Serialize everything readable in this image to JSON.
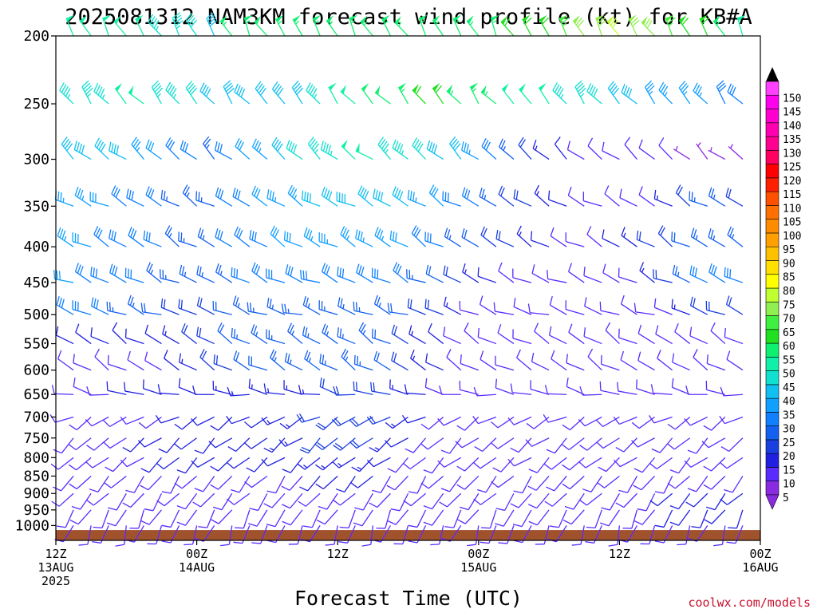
{
  "chart_data": {
    "type": "wind-barb-profile",
    "title": "2025081312 NAM3KM forecast wind profile (kt) for KB#A",
    "xlabel": "Forecast Time (UTC)",
    "ylabel": "",
    "credit": "coolwx.com/models",
    "y_axis": {
      "scale": "log-pressure",
      "reversed": true,
      "ylim": [
        1050,
        200
      ],
      "ticks": [
        200,
        250,
        300,
        350,
        400,
        450,
        500,
        550,
        600,
        650,
        700,
        750,
        800,
        850,
        900,
        950,
        1000
      ]
    },
    "x_axis": {
      "xlim_hours": [
        0,
        60
      ],
      "ticks": [
        {
          "hour": 0,
          "lines": [
            "12Z",
            "13AUG",
            "2025"
          ]
        },
        {
          "hour": 12,
          "lines": [
            "00Z",
            "14AUG"
          ]
        },
        {
          "hour": 24,
          "lines": [
            "12Z"
          ]
        },
        {
          "hour": 36,
          "lines": [
            "00Z",
            "15AUG"
          ]
        },
        {
          "hour": 48,
          "lines": [
            "12Z"
          ]
        },
        {
          "hour": 60,
          "lines": [
            "00Z",
            "16AUG"
          ]
        }
      ]
    },
    "ground": {
      "color": "#a0522d",
      "pressure_top": 1015
    },
    "barb_levels": [
      200,
      250,
      300,
      350,
      400,
      450,
      500,
      550,
      600,
      650,
      700,
      750,
      800,
      850,
      900,
      950,
      1000
    ],
    "barb_hours_step": 1.5,
    "colorbar": {
      "levels": [
        5,
        10,
        15,
        20,
        25,
        30,
        35,
        40,
        45,
        50,
        55,
        60,
        65,
        70,
        75,
        80,
        85,
        90,
        95,
        100,
        105,
        110,
        115,
        120,
        125,
        130,
        135,
        140,
        145,
        150
      ],
      "colors": [
        "#8a2be2",
        "#5a2bff",
        "#2020e0",
        "#1a3fe0",
        "#1460f0",
        "#1080ff",
        "#10a0ff",
        "#10c0f0",
        "#10e0d0",
        "#10f0a8",
        "#10f070",
        "#20e020",
        "#40f040",
        "#90f050",
        "#c0ff30",
        "#ffff00",
        "#ffe000",
        "#ffc000",
        "#ffa000",
        "#ff8c00",
        "#ff7000",
        "#ff5000",
        "#ff2000",
        "#ff0000",
        "#ff0060",
        "#ff0090",
        "#ff00b0",
        "#ff00d0",
        "#ff00ee",
        "#ff40ff"
      ]
    },
    "wind_knots_by_level": {
      "200": [
        45,
        48,
        50,
        50,
        50,
        48,
        45,
        45,
        42,
        40,
        55,
        55,
        52,
        55,
        55,
        55,
        55,
        55,
        55,
        55,
        55,
        55,
        55,
        55,
        55,
        55,
        60,
        60,
        60,
        65,
        70,
        70,
        72,
        70,
        70,
        65,
        60,
        60,
        55,
        50,
        50,
        45,
        45
      ],
      "250": [
        42,
        45,
        45,
        45,
        48,
        50,
        45,
        45,
        42,
        40,
        40,
        40,
        40,
        40,
        40,
        45,
        48,
        50,
        52,
        52,
        55,
        58,
        58,
        55,
        55,
        55,
        50,
        50,
        48,
        45,
        45,
        42,
        40,
        38,
        35,
        35,
        35,
        35,
        30,
        30,
        30,
        30,
        30
      ],
      "300": [
        40,
        40,
        40,
        40,
        38,
        35,
        32,
        30,
        28,
        25,
        30,
        32,
        35,
        40,
        42,
        45,
        45,
        48,
        48,
        45,
        45,
        42,
        40,
        38,
        35,
        30,
        25,
        20,
        15,
        12,
        10,
        8,
        8,
        8,
        8,
        8,
        5,
        5,
        5,
        5,
        5,
        5,
        5
      ],
      "350": [
        35,
        35,
        35,
        32,
        30,
        30,
        28,
        25,
        25,
        25,
        28,
        30,
        32,
        35,
        35,
        38,
        38,
        40,
        40,
        40,
        38,
        35,
        32,
        30,
        28,
        25,
        20,
        18,
        15,
        12,
        10,
        10,
        10,
        10,
        10,
        15,
        20,
        25,
        25,
        20,
        15,
        10,
        10
      ],
      "400": [
        35,
        35,
        32,
        30,
        30,
        28,
        28,
        25,
        25,
        25,
        28,
        30,
        30,
        32,
        32,
        35,
        35,
        35,
        35,
        35,
        32,
        30,
        28,
        25,
        22,
        20,
        18,
        15,
        12,
        10,
        10,
        10,
        12,
        15,
        18,
        20,
        22,
        25,
        25,
        25,
        20,
        15,
        12
      ],
      "450": [
        32,
        32,
        30,
        30,
        28,
        28,
        25,
        25,
        25,
        25,
        25,
        28,
        28,
        30,
        30,
        30,
        30,
        30,
        30,
        30,
        28,
        25,
        22,
        20,
        15,
        12,
        10,
        8,
        8,
        8,
        8,
        8,
        8,
        10,
        15,
        20,
        25,
        30,
        30,
        28,
        25,
        20,
        15
      ],
      "500": [
        30,
        30,
        28,
        28,
        25,
        25,
        22,
        20,
        20,
        20,
        22,
        25,
        25,
        25,
        25,
        25,
        25,
        25,
        25,
        25,
        22,
        20,
        18,
        15,
        10,
        8,
        8,
        8,
        8,
        8,
        8,
        8,
        8,
        8,
        8,
        10,
        15,
        20,
        20,
        18,
        15,
        12,
        10
      ],
      "550": [
        12,
        12,
        12,
        12,
        12,
        12,
        12,
        15,
        18,
        20,
        22,
        25,
        25,
        25,
        25,
        25,
        25,
        25,
        25,
        22,
        20,
        15,
        12,
        10,
        8,
        8,
        8,
        8,
        8,
        8,
        8,
        8,
        8,
        8,
        8,
        8,
        8,
        8,
        8,
        8,
        8,
        8,
        8
      ],
      "600": [
        10,
        10,
        10,
        10,
        10,
        10,
        10,
        12,
        15,
        18,
        20,
        22,
        22,
        25,
        25,
        25,
        25,
        25,
        25,
        22,
        20,
        15,
        12,
        10,
        8,
        8,
        8,
        8,
        8,
        8,
        8,
        8,
        8,
        8,
        8,
        8,
        8,
        8,
        8,
        8,
        8,
        8,
        8
      ],
      "650": [
        10,
        10,
        10,
        10,
        12,
        12,
        12,
        12,
        12,
        12,
        15,
        15,
        15,
        15,
        15,
        15,
        18,
        20,
        20,
        18,
        15,
        12,
        10,
        8,
        8,
        8,
        8,
        8,
        8,
        8,
        8,
        8,
        8,
        8,
        8,
        8,
        8,
        8,
        8,
        8,
        8,
        8,
        8
      ],
      "700": [
        10,
        10,
        10,
        10,
        10,
        10,
        10,
        12,
        12,
        12,
        12,
        12,
        12,
        15,
        15,
        18,
        20,
        20,
        20,
        18,
        15,
        12,
        10,
        8,
        8,
        8,
        8,
        8,
        8,
        8,
        8,
        8,
        8,
        8,
        8,
        8,
        8,
        8,
        8,
        8,
        8,
        8,
        8
      ],
      "750": [
        10,
        10,
        10,
        10,
        10,
        12,
        12,
        12,
        12,
        12,
        12,
        12,
        12,
        15,
        15,
        18,
        18,
        20,
        18,
        15,
        12,
        10,
        10,
        8,
        8,
        8,
        8,
        8,
        8,
        8,
        8,
        8,
        8,
        8,
        8,
        8,
        8,
        8,
        8,
        8,
        8,
        8,
        8
      ],
      "800": [
        8,
        8,
        8,
        10,
        10,
        10,
        12,
        12,
        12,
        12,
        12,
        12,
        12,
        12,
        12,
        15,
        15,
        15,
        15,
        12,
        10,
        10,
        8,
        8,
        8,
        8,
        8,
        8,
        8,
        8,
        8,
        8,
        8,
        8,
        8,
        8,
        8,
        8,
        8,
        8,
        8,
        10,
        10
      ],
      "850": [
        8,
        8,
        8,
        8,
        10,
        10,
        10,
        10,
        10,
        10,
        10,
        10,
        10,
        10,
        10,
        12,
        12,
        12,
        12,
        10,
        10,
        8,
        8,
        8,
        8,
        8,
        8,
        8,
        8,
        8,
        8,
        8,
        8,
        8,
        8,
        10,
        10,
        10,
        10,
        10,
        10,
        10,
        10
      ],
      "900": [
        8,
        8,
        8,
        8,
        8,
        8,
        8,
        8,
        8,
        8,
        8,
        8,
        8,
        8,
        8,
        10,
        10,
        10,
        10,
        8,
        8,
        8,
        8,
        8,
        8,
        8,
        8,
        8,
        8,
        8,
        8,
        8,
        8,
        8,
        10,
        12,
        12,
        12,
        12,
        12,
        12,
        12,
        12
      ],
      "950": [
        8,
        8,
        8,
        8,
        8,
        8,
        8,
        8,
        8,
        8,
        8,
        8,
        8,
        8,
        8,
        8,
        8,
        8,
        8,
        8,
        8,
        8,
        8,
        8,
        8,
        8,
        8,
        8,
        8,
        8,
        8,
        8,
        8,
        8,
        10,
        12,
        12,
        12,
        12,
        12,
        12,
        12,
        12
      ],
      "1000": [
        8,
        8,
        8,
        8,
        8,
        8,
        8,
        8,
        8,
        8,
        8,
        8,
        8,
        8,
        8,
        8,
        8,
        8,
        8,
        8,
        8,
        8,
        8,
        8,
        8,
        8,
        8,
        8,
        8,
        8,
        8,
        8,
        8,
        8,
        8,
        8,
        8,
        8,
        8,
        8,
        8,
        8,
        8
      ]
    },
    "wind_dir_deg_by_level": {
      "200": 330,
      "250": 320,
      "300": 310,
      "350": 300,
      "400": 300,
      "450": 295,
      "500": 290,
      "550": 300,
      "600": 300,
      "650": 280,
      "700": 240,
      "750": 230,
      "800": 230,
      "850": 220,
      "900": 220,
      "950": 210,
      "1000": 200
    }
  }
}
